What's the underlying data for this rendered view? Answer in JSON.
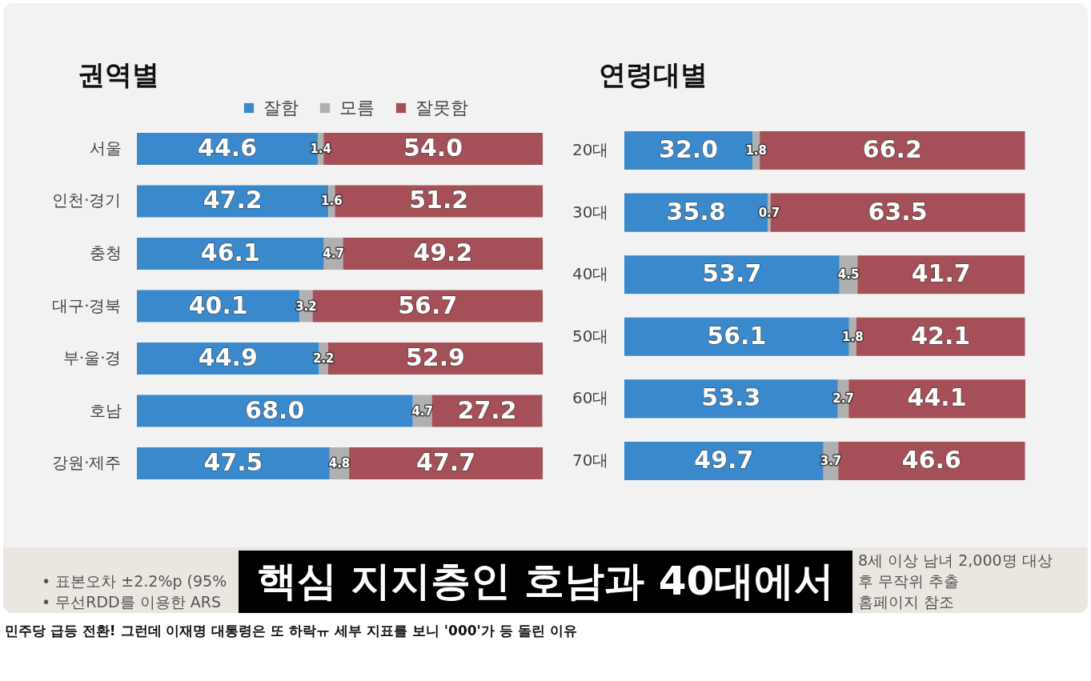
{
  "chart_data": [
    {
      "type": "bar",
      "orientation": "horizontal",
      "stacked": true,
      "title": "권역별",
      "categories": [
        "서울",
        "인천·경기",
        "충청",
        "대구·경북",
        "부·울·경",
        "호남",
        "강원·제주"
      ],
      "series": [
        {
          "name": "잘함",
          "color": "#3a89cc",
          "values": [
            44.6,
            47.2,
            46.1,
            40.1,
            44.9,
            68.0,
            47.5
          ],
          "value_labels": [
            "44.6",
            "47.2",
            "46.1",
            "40.1",
            "44.9",
            "68.0",
            "47.5"
          ]
        },
        {
          "name": "모름",
          "color": "#b0b0b0",
          "values": [
            1.4,
            1.6,
            4.7,
            3.2,
            2.2,
            4.7,
            4.8
          ],
          "value_labels": [
            "1.4",
            "1.6",
            "4.7",
            "3.2",
            "2.2",
            "4.7",
            "4.8"
          ]
        },
        {
          "name": "잘못함",
          "color": "#a54f58",
          "values": [
            54.0,
            51.2,
            49.2,
            56.7,
            52.9,
            27.2,
            47.7
          ],
          "value_labels": [
            "54.0",
            "51.2",
            "49.2",
            "56.7",
            "52.9",
            "27.2",
            "47.7"
          ]
        }
      ],
      "legend": "top",
      "tick_labels": "y",
      "annotations": [
        "• 표본오차 ±2.2%p (95%",
        "• 무선RDD를 이용한 ARS",
        "핵심 지지층인 호남과 40대에서",
        "8세 이상 남녀 2,000명 대상",
        "후 무작위 추출",
        "홈페이지 참조",
        "민주당 급등 전환! 그런데 이재명 대통령은 또 하락ㅠ 세부 지표를 보니 '000'가 등 돌린 이유"
      ]
    },
    {
      "type": "bar",
      "orientation": "horizontal",
      "stacked": true,
      "title": "연령대별",
      "categories": [
        "20대",
        "30대",
        "40대",
        "50대",
        "60대",
        "70대"
      ],
      "series": [
        {
          "color": "#3a89cc",
          "values": [
            32.0,
            35.8,
            53.7,
            56.1,
            53.3,
            49.7
          ],
          "value_labels": [
            "32.0",
            "35.8",
            "53.7",
            "56.1",
            "53.3",
            "49.7"
          ]
        },
        {
          "color": "#b0b0b0",
          "values": [
            1.8,
            0.7,
            4.5,
            1.8,
            2.7,
            3.7
          ],
          "value_labels": [
            "1.8",
            "0.7",
            "4.5",
            "1.8",
            "2.7",
            "3.7"
          ]
        },
        {
          "color": "#a54f58",
          "values": [
            66.2,
            63.5,
            41.7,
            42.1,
            44.1,
            46.6
          ],
          "value_labels": [
            "66.2",
            "63.5",
            "41.7",
            "42.1",
            "44.1",
            "46.6"
          ]
        }
      ],
      "tick_labels": "y"
    }
  ]
}
